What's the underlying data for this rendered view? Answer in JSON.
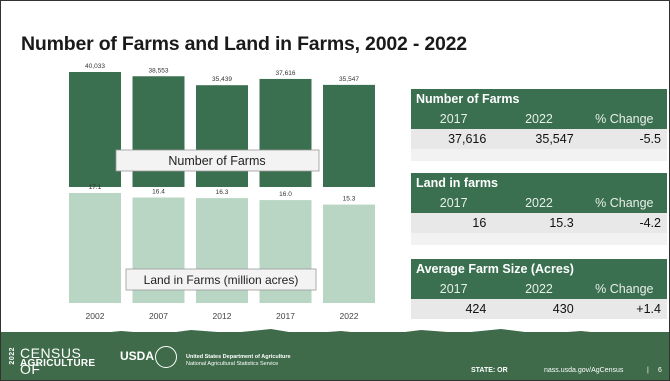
{
  "slide": {
    "title": "Number of Farms and Land in Farms, 2002 - 2022"
  },
  "chart_data": {
    "type": "bar",
    "categories": [
      "2002",
      "2007",
      "2012",
      "2017",
      "2022"
    ],
    "series": [
      {
        "name": "Number of Farms",
        "values": [
          40033,
          38553,
          35439,
          37616,
          35547
        ],
        "labels": [
          "40,033",
          "38,553",
          "35,439",
          "37,616",
          "35,547"
        ],
        "color": "#3a7050"
      },
      {
        "name": "Land in Farms (million acres)",
        "values": [
          17.1,
          16.4,
          16.3,
          16.0,
          15.3
        ],
        "labels": [
          "17.1",
          "16.4",
          "16.3",
          "16.0",
          "15.3"
        ],
        "color": "#b8d6c3"
      }
    ],
    "xlabel": "",
    "ylabel": "",
    "grid": false
  },
  "tables": [
    {
      "title": "Number of Farms",
      "headers": [
        "2017",
        "2022",
        "% Change"
      ],
      "values": [
        "37,616",
        "35,547",
        "-5.5"
      ]
    },
    {
      "title": "Land in farms",
      "headers": [
        "2017",
        "2022",
        "% Change"
      ],
      "values": [
        "16",
        "15.3",
        "-4.2"
      ]
    },
    {
      "title": "Average Farm Size (Acres)",
      "headers": [
        "2017",
        "2022",
        "% Change"
      ],
      "values": [
        "424",
        "430",
        "+1.4"
      ]
    }
  ],
  "footer": {
    "logo_year": "2022",
    "logo_line1": "CENSUS OF",
    "logo_line2": "AGRICULTURE",
    "usda": "USDA",
    "dept_line1": "United States Department of Agriculture",
    "dept_line2": "National Agricultural Statistics Service",
    "state": "STATE: OR",
    "url": "nass.usda.gov/AgCensus",
    "separator": "|",
    "page": "6"
  },
  "colors": {
    "dark_green": "#3a7050",
    "light_green": "#b8d6c3",
    "footer_green": "#3f6b4b",
    "value_bg": "#e8e8e8"
  }
}
